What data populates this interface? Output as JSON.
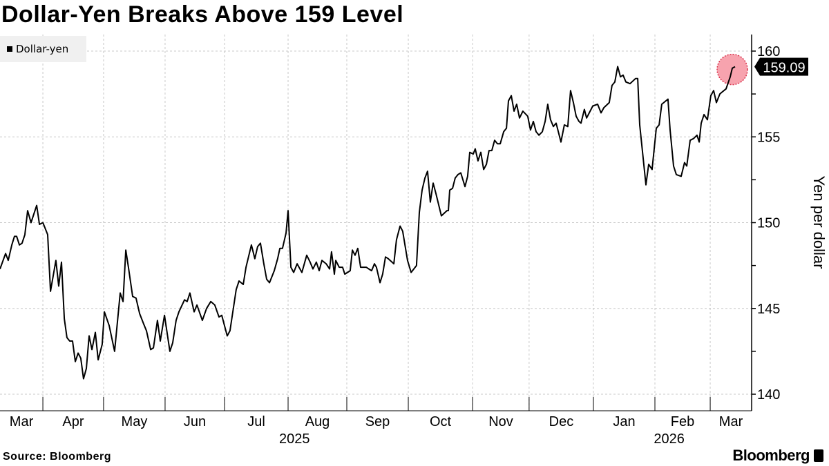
{
  "title": "Dollar-Yen Breaks Above 159 Level",
  "source": "Source: Bloomberg",
  "brand": "Bloomberg",
  "colors": {
    "line": "#000000",
    "highlight_fill": "#f7a3ae",
    "highlight_border": "#d9334d",
    "grid": "#c8c8c8",
    "legend_bg": "#f0f0f0"
  },
  "chart_data": {
    "type": "line",
    "title": "Dollar-Yen Breaks Above 159 Level",
    "xlabel": "",
    "ylabel": "Yen per dollar",
    "x_unit": "days since start of chart (approx. mid-March 2025)",
    "xlim": [
      0,
      375
    ],
    "ylim": [
      139,
      161
    ],
    "y_ticks": [
      140,
      145,
      150,
      155,
      160
    ],
    "y_minor_ticks": [
      142.5,
      147.5,
      152.5,
      157.5
    ],
    "grid": true,
    "legend": {
      "position": "top-left",
      "entries": [
        "Dollar-yen"
      ]
    },
    "month_boundaries": [
      21.4,
      51.7,
      82.4,
      112.1,
      143.8,
      173.1,
      203.8,
      235.9,
      264.1,
      296.2,
      326.9,
      354.5
    ],
    "month_labels": [
      "Mar",
      "Apr",
      "May",
      "Jun",
      "Jul",
      "Aug",
      "Sep",
      "Oct",
      "Nov",
      "Dec",
      "Jan",
      "Feb",
      "Mar"
    ],
    "year_labels": [
      {
        "label": "2025",
        "day": 147
      },
      {
        "label": "2026",
        "day": 334
      }
    ],
    "last_value_label": "159.09",
    "series": [
      {
        "name": "Dollar-yen",
        "x": [
          0,
          2.8,
          4.1,
          5.9,
          7.2,
          8.3,
          9.7,
          11,
          12.4,
          13.8,
          15.5,
          18.3,
          19.7,
          21.4,
          23.8,
          25.2,
          27.9,
          29.3,
          30.7,
          32.1,
          33.4,
          34.8,
          36.2,
          37.6,
          39,
          40.3,
          41.7,
          43.1,
          44.5,
          45.9,
          47.6,
          49,
          51,
          52.1,
          54.5,
          57.2,
          60,
          61.4,
          62.8,
          64.1,
          66.2,
          67.9,
          69.7,
          71.7,
          73.1,
          75.2,
          76.6,
          78.6,
          80,
          82.1,
          84.8,
          86.2,
          87.9,
          89.3,
          92.1,
          93.4,
          94.8,
          96.9,
          98.3,
          101,
          103.1,
          105.2,
          107.2,
          109.3,
          110.7,
          113.4,
          114.8,
          117.9,
          119.3,
          121.4,
          122.8,
          125.5,
          127.2,
          128.6,
          130,
          131.7,
          133.1,
          134.5,
          136.9,
          138.6,
          139.7,
          141,
          142.8,
          143.8,
          145.2,
          146.6,
          148.3,
          150.7,
          153.1,
          154.8,
          156.2,
          157.9,
          159.3,
          160.7,
          162.8,
          164.5,
          165.5,
          166.9,
          167.6,
          169.3,
          171,
          172.1,
          174.8,
          175.9,
          177.2,
          178.6,
          180,
          182.8,
          184.1,
          185.5,
          186.9,
          187.9,
          189.7,
          191,
          192.4,
          193.8,
          196.6,
          197.9,
          199.7,
          201,
          203.4,
          205.2,
          207.9,
          209.3,
          210.7,
          212.1,
          213.4,
          214.8,
          216.2,
          217.6,
          220.3,
          223.1,
          223.8,
          224.5,
          225.9,
          227.2,
          228.6,
          230,
          232.1,
          233.4,
          234.5,
          236.2,
          237.2,
          238.6,
          240,
          241.4,
          242.8,
          244.1,
          245.5,
          246.9,
          248.3,
          249.7,
          251.4,
          252.8,
          253.8,
          255.2,
          256.6,
          257.9,
          259.3,
          261,
          263.4,
          264.8,
          266.2,
          267.6,
          269,
          270.7,
          272.1,
          273.4,
          274.8,
          276.2,
          277.6,
          280,
          281.7,
          283.4,
          284.8,
          286.2,
          287.6,
          289,
          290,
          291.7,
          292.8,
          295.9,
          298.3,
          300,
          301.4,
          304.1,
          305.5,
          306.9,
          308.3,
          309.7,
          311,
          312.4,
          314.5,
          317.2,
          318.3,
          319.3,
          322.4,
          323.8,
          325.5,
          327.6,
          329,
          330.3,
          333.4,
          334.5,
          336.2,
          337.6,
          340,
          341.7,
          342.8,
          344.5,
          346.2,
          347.9,
          349,
          350,
          351.4,
          353.1,
          354.8,
          356.2,
          357.6,
          359.3,
          360.3,
          362.4,
          364.5,
          365.5,
          366.9
        ],
        "values": [
          147.3,
          148.2,
          147.8,
          148.7,
          149.2,
          149.2,
          148.7,
          148.8,
          149.3,
          150.7,
          150.0,
          151.0,
          149.9,
          150.0,
          149.3,
          146.0,
          147.8,
          146.3,
          147.7,
          144.4,
          143.3,
          143.1,
          143.1,
          141.9,
          142.4,
          142.1,
          140.9,
          141.5,
          143.4,
          142.6,
          143.6,
          142.0,
          142.9,
          144.8,
          144.0,
          142.5,
          145.9,
          145.4,
          148.4,
          147.4,
          145.7,
          145.6,
          144.7,
          144.1,
          143.7,
          142.6,
          142.7,
          144.3,
          143.1,
          144.6,
          142.5,
          143.0,
          144.3,
          144.8,
          145.5,
          145.4,
          145.9,
          144.8,
          145.2,
          144.3,
          145.0,
          145.4,
          145.2,
          144.5,
          144.6,
          143.4,
          143.7,
          146.1,
          146.6,
          146.4,
          147.4,
          148.7,
          147.9,
          148.6,
          148.8,
          147.6,
          146.7,
          146.5,
          147.2,
          147.9,
          148.5,
          148.5,
          149.4,
          150.7,
          147.4,
          147.1,
          147.6,
          147.1,
          148.1,
          147.7,
          147.3,
          147.7,
          147.2,
          147.8,
          147.6,
          147.3,
          148.3,
          147.0,
          147.8,
          147.4,
          147.4,
          147.0,
          147.2,
          148.4,
          148.1,
          148.5,
          147.4,
          147.4,
          147.3,
          147.2,
          147.6,
          147.4,
          146.5,
          147.0,
          148.0,
          147.9,
          147.6,
          149.0,
          149.8,
          149.5,
          147.8,
          147.1,
          147.5,
          150.6,
          151.9,
          152.6,
          153.0,
          151.2,
          152.3,
          151.7,
          150.4,
          150.7,
          150.7,
          151.9,
          152.0,
          152.6,
          152.8,
          152.9,
          152.1,
          152.7,
          154.1,
          154.0,
          154.3,
          153.6,
          154.1,
          153.1,
          153.4,
          154.2,
          154.2,
          154.8,
          154.6,
          154.6,
          155.3,
          155.5,
          157.1,
          157.4,
          156.5,
          156.9,
          156.1,
          156.5,
          156.2,
          155.4,
          155.9,
          155.3,
          155.1,
          155.3,
          155.9,
          156.9,
          156.0,
          155.6,
          155.8,
          154.7,
          155.7,
          155.6,
          157.7,
          157.0,
          156.2,
          155.9,
          155.8,
          156.6,
          156.1,
          156.8,
          156.9,
          156.4,
          156.7,
          157.0,
          158.0,
          158.2,
          159.1,
          158.5,
          158.6,
          158.2,
          158.1,
          158.4,
          158.4,
          155.7,
          152.2,
          153.4,
          153.1,
          155.5,
          155.7,
          156.9,
          157.2,
          155.4,
          153.3,
          152.8,
          152.7,
          153.5,
          153.3,
          154.8,
          154.9,
          155.1,
          154.7,
          155.8,
          156.3,
          156.0,
          157.4,
          157.7,
          157.0,
          157.5,
          157.6,
          157.8,
          158.5,
          159.0,
          159.09
        ]
      }
    ]
  }
}
